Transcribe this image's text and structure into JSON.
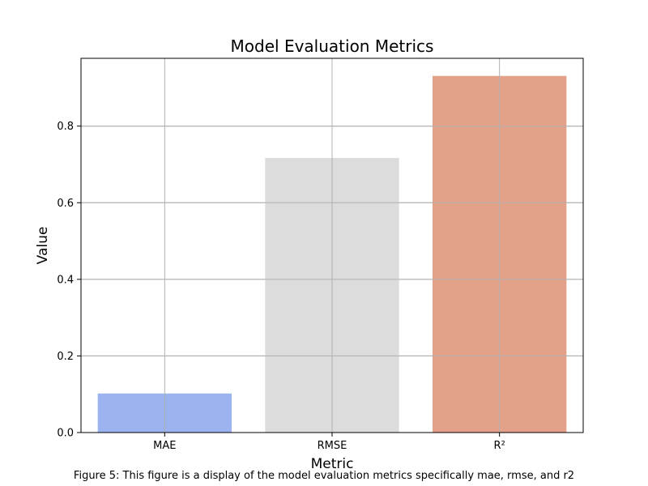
{
  "chart_data": {
    "type": "bar",
    "title": "Model Evaluation Metrics",
    "xlabel": "Metric",
    "ylabel": "Value",
    "categories": [
      "MAE",
      "RMSE",
      "R²"
    ],
    "values": [
      0.102,
      0.717,
      0.931
    ],
    "colors": [
      "#9bb4f0",
      "#dcdcdc",
      "#e4a18a"
    ],
    "ylim": [
      0,
      0.977
    ],
    "yticks": [
      0.0,
      0.2,
      0.4,
      0.6,
      0.8
    ],
    "ytick_labels": [
      "0.0",
      "0.2",
      "0.4",
      "0.6",
      "0.8"
    ],
    "grid": true,
    "grid_color": "#b0b0b0",
    "legend": "none"
  },
  "caption": "Figure 5: This figure is a display of the model evaluation metrics specifically mae, rmse, and r2"
}
